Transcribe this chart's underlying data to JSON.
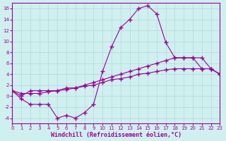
{
  "title": "",
  "xlabel": "Windchill (Refroidissement éolien,°C)",
  "ylabel": "",
  "background_color": "#d0f0f0",
  "line_color": "#990099",
  "xlim": [
    0,
    23
  ],
  "ylim": [
    -5,
    17
  ],
  "yticks": [
    -4,
    -2,
    0,
    2,
    4,
    6,
    8,
    10,
    12,
    14,
    16
  ],
  "xticks": [
    0,
    1,
    2,
    3,
    4,
    5,
    6,
    7,
    8,
    9,
    10,
    11,
    12,
    13,
    14,
    15,
    16,
    17,
    18,
    19,
    20,
    21,
    22,
    23
  ],
  "line1_x": [
    0,
    1,
    2,
    3,
    4,
    5,
    6,
    7,
    8,
    9,
    10,
    11,
    12,
    13,
    14,
    15,
    16,
    17,
    18,
    19,
    20,
    21,
    22,
    23
  ],
  "line1_y": [
    1,
    -0.5,
    -1.5,
    -1.5,
    -1.5,
    -4,
    -3.5,
    -4,
    -3,
    -1.5,
    4.5,
    9,
    12.5,
    14,
    16,
    16.5,
    15,
    9.8,
    7,
    7,
    7,
    5,
    5,
    4
  ],
  "line2_x": [
    0,
    1,
    2,
    3,
    4,
    5,
    6,
    7,
    8,
    9,
    10,
    11,
    12,
    13,
    14,
    15,
    16,
    17,
    18,
    19,
    20,
    21,
    22,
    23
  ],
  "line2_y": [
    1,
    0,
    1,
    1,
    1,
    1,
    1.5,
    1.5,
    2,
    2.5,
    3,
    3.5,
    4,
    4.5,
    5,
    5.5,
    6,
    6.5,
    7,
    7,
    7,
    7,
    5,
    4
  ],
  "line3_x": [
    0,
    1,
    2,
    3,
    4,
    5,
    6,
    7,
    8,
    9,
    10,
    11,
    12,
    13,
    14,
    15,
    16,
    17,
    18,
    19,
    20,
    21,
    22,
    23
  ],
  "line3_y": [
    1,
    0.5,
    0.5,
    0.5,
    0.8,
    1,
    1.2,
    1.5,
    1.8,
    2,
    2.5,
    3,
    3.2,
    3.5,
    4,
    4.2,
    4.5,
    4.8,
    5,
    5,
    5,
    5,
    5,
    4
  ]
}
